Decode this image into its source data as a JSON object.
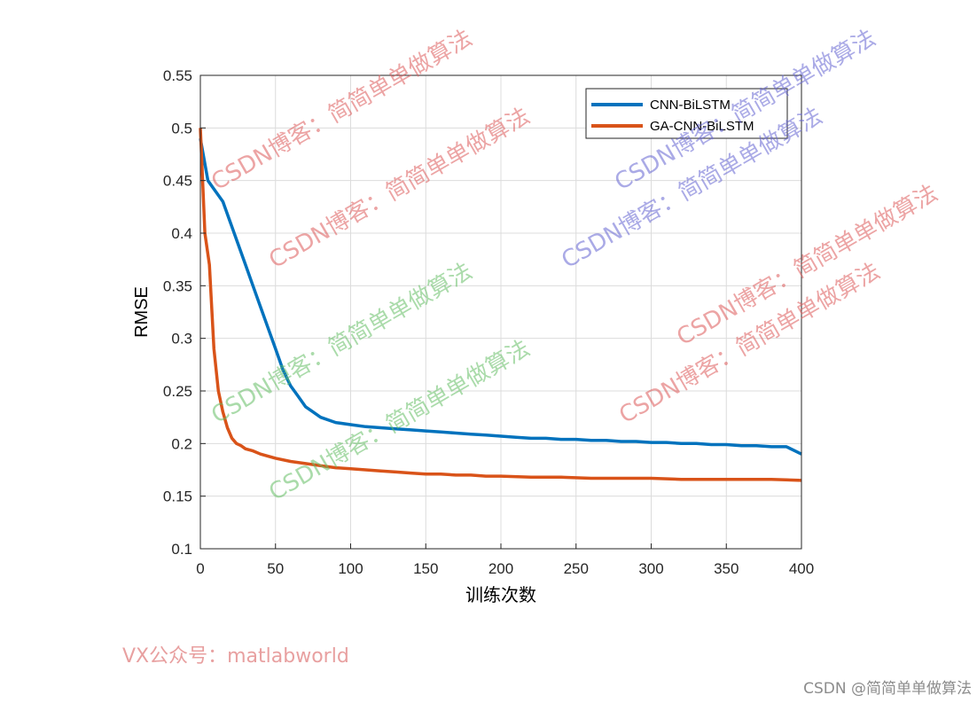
{
  "chart_data": {
    "type": "line",
    "xlabel": "训练次数",
    "ylabel": "RMSE",
    "xlim": [
      0,
      400
    ],
    "ylim": [
      0.1,
      0.55
    ],
    "xticks": [
      "0",
      "50",
      "100",
      "150",
      "200",
      "250",
      "300",
      "350",
      "400"
    ],
    "yticks": [
      "0.1",
      "0.15",
      "0.2",
      "0.25",
      "0.3",
      "0.35",
      "0.4",
      "0.45",
      "0.5",
      "0.55"
    ],
    "grid": true,
    "legend_position": "top-right",
    "series": [
      {
        "name": "CNN-BiLSTM",
        "color": "#0072BD",
        "x": [
          0,
          5,
          10,
          15,
          20,
          25,
          30,
          35,
          40,
          45,
          50,
          55,
          60,
          65,
          70,
          75,
          80,
          90,
          100,
          110,
          120,
          130,
          140,
          150,
          160,
          170,
          180,
          190,
          200,
          210,
          220,
          230,
          240,
          250,
          260,
          270,
          280,
          290,
          300,
          310,
          320,
          330,
          340,
          350,
          360,
          370,
          380,
          390,
          400
        ],
        "y": [
          0.49,
          0.45,
          0.44,
          0.43,
          0.41,
          0.39,
          0.37,
          0.35,
          0.33,
          0.31,
          0.29,
          0.27,
          0.255,
          0.245,
          0.235,
          0.23,
          0.225,
          0.22,
          0.218,
          0.216,
          0.215,
          0.214,
          0.213,
          0.212,
          0.211,
          0.21,
          0.209,
          0.208,
          0.207,
          0.206,
          0.205,
          0.205,
          0.204,
          0.204,
          0.203,
          0.203,
          0.202,
          0.202,
          0.201,
          0.201,
          0.2,
          0.2,
          0.199,
          0.199,
          0.198,
          0.198,
          0.197,
          0.197,
          0.19
        ]
      },
      {
        "name": "GA-CNN-BiLSTM",
        "color": "#D95319",
        "x": [
          0,
          3,
          6,
          9,
          12,
          15,
          18,
          21,
          24,
          27,
          30,
          35,
          40,
          45,
          50,
          60,
          70,
          80,
          90,
          100,
          110,
          120,
          130,
          140,
          150,
          160,
          170,
          180,
          190,
          200,
          220,
          240,
          260,
          280,
          300,
          320,
          340,
          360,
          380,
          400
        ],
        "y": [
          0.5,
          0.4,
          0.37,
          0.29,
          0.25,
          0.23,
          0.215,
          0.205,
          0.2,
          0.198,
          0.195,
          0.193,
          0.19,
          0.188,
          0.186,
          0.183,
          0.181,
          0.179,
          0.177,
          0.176,
          0.175,
          0.174,
          0.173,
          0.172,
          0.171,
          0.171,
          0.17,
          0.17,
          0.169,
          0.169,
          0.168,
          0.168,
          0.167,
          0.167,
          0.167,
          0.166,
          0.166,
          0.166,
          0.166,
          0.165
        ]
      }
    ]
  },
  "watermark_text": "CSDN博客：简简单单做算法",
  "footer_left": "VX公众号：matlabworld",
  "footer_right": "CSDN @简简单单做算法"
}
